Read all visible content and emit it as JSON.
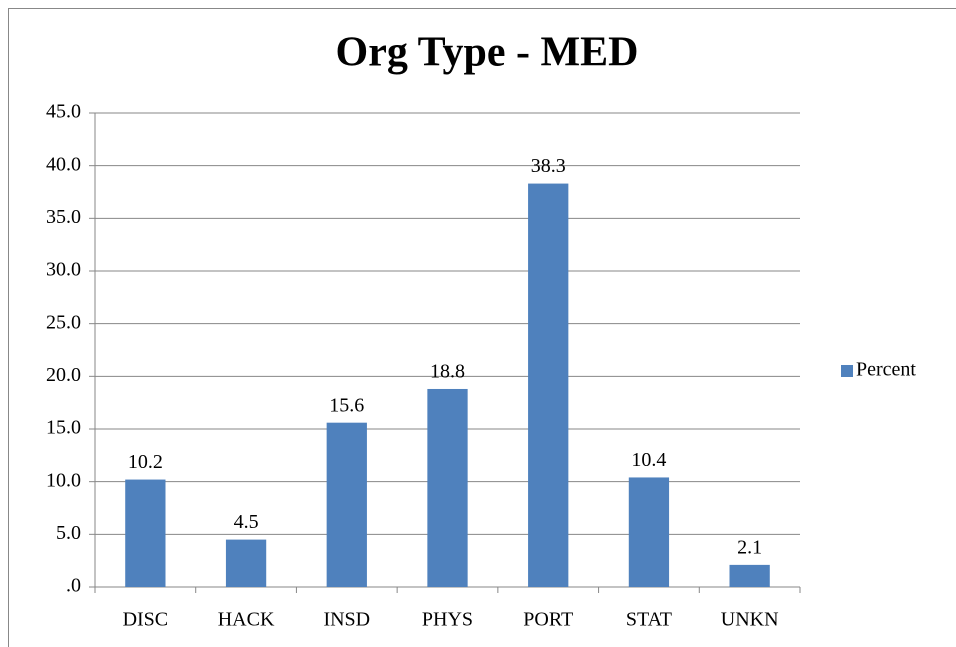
{
  "chart_data": {
    "type": "bar",
    "title": "Org Type - MED",
    "categories": [
      "DISC",
      "HACK",
      "INSD",
      "PHYS",
      "PORT",
      "STAT",
      "UNKN"
    ],
    "series": [
      {
        "name": "Percent",
        "color": "#4f81bd",
        "values": [
          10.2,
          4.5,
          15.6,
          18.8,
          38.3,
          10.4,
          2.1
        ]
      }
    ],
    "ylim": [
      0,
      45
    ],
    "yticks": [
      {
        "value": 0,
        "label": ".0"
      },
      {
        "value": 5,
        "label": "5.0"
      },
      {
        "value": 10,
        "label": "10.0"
      },
      {
        "value": 15,
        "label": "15.0"
      },
      {
        "value": 20,
        "label": "20.0"
      },
      {
        "value": 25,
        "label": "25.0"
      },
      {
        "value": 30,
        "label": "30.0"
      },
      {
        "value": 35,
        "label": "35.0"
      },
      {
        "value": 40,
        "label": "40.0"
      },
      {
        "value": 45,
        "label": "45.0"
      }
    ],
    "grid": true,
    "legend": "right"
  }
}
